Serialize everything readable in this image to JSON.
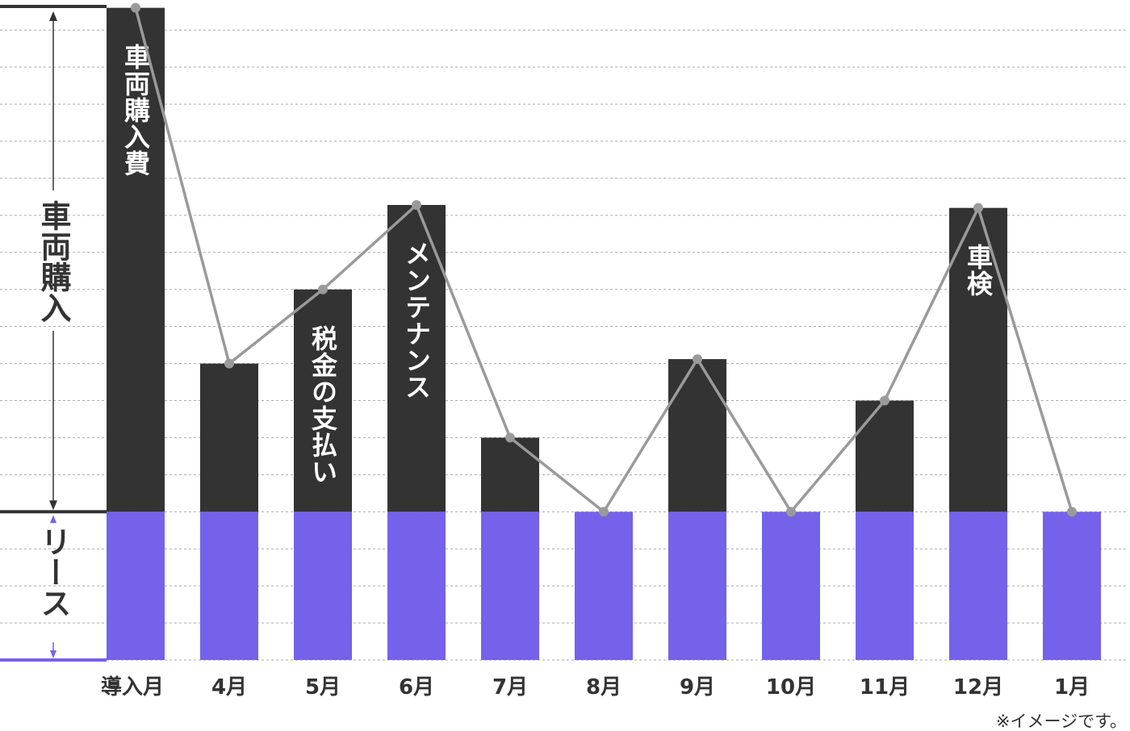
{
  "chart_data": {
    "type": "bar",
    "title": "",
    "xlabel": "",
    "ylabel": "",
    "categories": [
      "導入月",
      "4月",
      "5月",
      "6月",
      "7月",
      "8月",
      "9月",
      "10月",
      "11月",
      "12月",
      "1月"
    ],
    "series": [
      {
        "name": "リース",
        "values": [
          1,
          1,
          1,
          1,
          1,
          1,
          1,
          1,
          1,
          1,
          1
        ]
      },
      {
        "name": "",
        "values": [
          3.4,
          1.0,
          1.5,
          2.07,
          0.5,
          0,
          1.03,
          0,
          0.75,
          2.05,
          0
        ]
      }
    ],
    "line_values": [
      4.4,
      2.0,
      2.5,
      3.07,
      1.5,
      1.0,
      2.03,
      1.0,
      1.75,
      3.05,
      1.0
    ],
    "ylim": [
      0,
      4.42
    ],
    "grid": true,
    "bar_labels": [
      {
        "category_index": 0,
        "text": "車両購入費"
      },
      {
        "category_index": 2,
        "text": "税金の支払い"
      },
      {
        "category_index": 3,
        "text": "メンテナンス"
      },
      {
        "category_index": 9,
        "text": "車検"
      }
    ],
    "bracket_labels": {
      "upper": "車両購入",
      "lower": "リース"
    },
    "note": "※イメージです。",
    "colors": {
      "lease": "#7562EA",
      "cost": "#333333",
      "line": "#9A9A9A",
      "grid": "#AAAAAA",
      "text": "#333333"
    }
  }
}
